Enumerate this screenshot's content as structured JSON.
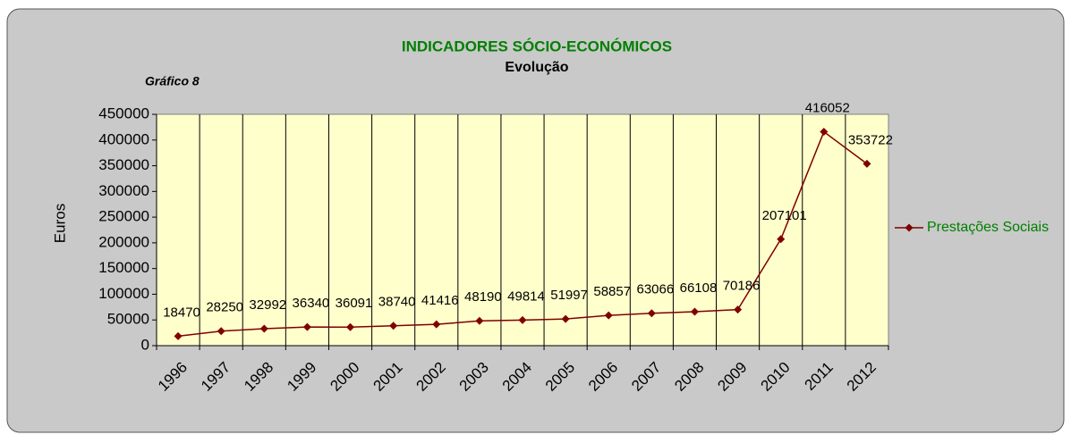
{
  "chart_data": {
    "type": "line",
    "title": "INDICADORES SÓCIO-ECONÓMICOS",
    "subtitle": "Evolução",
    "annotation": "Gráfico 8",
    "y_label": "Euros",
    "categories": [
      "1996",
      "1997",
      "1998",
      "1999",
      "2000",
      "2001",
      "2002",
      "2003",
      "2004",
      "2005",
      "2006",
      "2007",
      "2008",
      "2009",
      "2010",
      "2011",
      "2012"
    ],
    "series": [
      {
        "name": "Prestações Sociais",
        "color": "#800000",
        "values": [
          18470,
          28250,
          32992,
          36340,
          36091,
          38740,
          41416,
          48190,
          49814,
          51997,
          58857,
          63066,
          66108,
          70186,
          207101,
          416052,
          353722
        ]
      }
    ],
    "ylim": [
      0,
      450000
    ],
    "yticks": [
      0,
      50000,
      100000,
      150000,
      200000,
      250000,
      300000,
      350000,
      400000,
      450000
    ],
    "grid": "x",
    "legend": "right"
  }
}
